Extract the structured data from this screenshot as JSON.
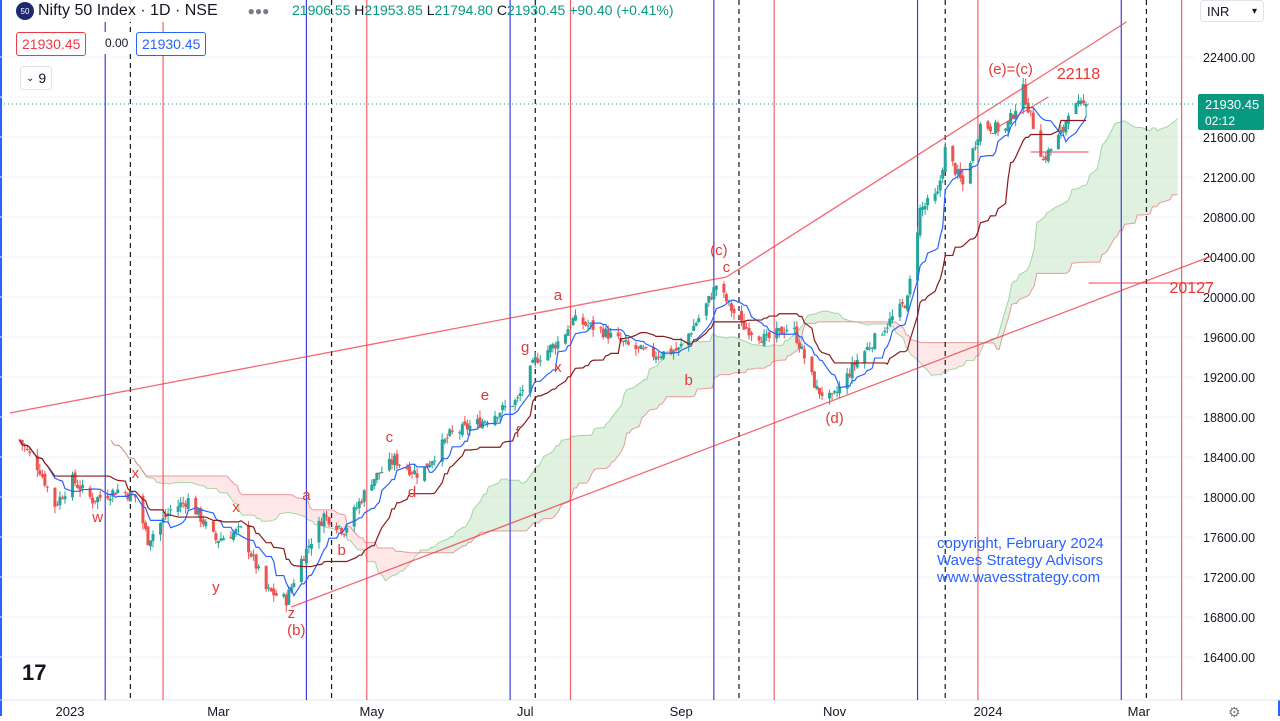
{
  "header": {
    "symbol_badge": "50",
    "title": "Nifty 50 Index · 1D · NSE",
    "open": "21906.55",
    "high_label": "H",
    "high": "21953.85",
    "low_label": "L",
    "low": "21794.80",
    "close_label": "C",
    "close": "21930.45",
    "change": "+90.40 (+0.41%)",
    "more_icon": "ellipsis-icon"
  },
  "indicator": {
    "value1": "21930.45",
    "value2": "0.00",
    "value3": "21930.45",
    "collapse_label": "9"
  },
  "currency": "INR",
  "last_price": {
    "value": "21930.45",
    "countdown": "02:12"
  },
  "copyright": [
    "copyright, February 2024",
    "Waves Strategy Advisors",
    "www.wavesstrategy.com"
  ],
  "colors": {
    "up": "#26a69a",
    "down": "#ef5350",
    "tenkan": "#2962ff",
    "kijun": "#8b1a1a",
    "cloud_green": "#a5d6a7",
    "cloud_red": "#f8bbbb",
    "trendline": "#f23645",
    "vline_blue": "#3f3fe0",
    "vline_red": "#f23645",
    "vline_dash": "#131722",
    "label": "#e53935",
    "price_tag": "#089981"
  },
  "chart_data": {
    "type": "candlestick",
    "title": "Nifty 50 Index · 1D · NSE",
    "ylim": [
      16200,
      22800
    ],
    "yticks": [
      16400,
      16800,
      17200,
      17600,
      18000,
      18400,
      18800,
      19200,
      19600,
      20000,
      20400,
      20800,
      21200,
      21600,
      22000,
      22400
    ],
    "ytick_labels": [
      "16400.00",
      "16800.00",
      "17200.00",
      "17600.00",
      "18000.00",
      "18400.00",
      "18800.00",
      "19200.00",
      "19600.00",
      "20000.00",
      "20400.00",
      "20800.00",
      "21200.00",
      "21600.00",
      "",
      "22400.00"
    ],
    "xlim": [
      "2022-12-08",
      "2024-03-30"
    ],
    "xticks": [
      {
        "date": "2023-01-01",
        "label": "2023"
      },
      {
        "date": "2023-03-01",
        "label": "Mar"
      },
      {
        "date": "2023-05-01",
        "label": "May"
      },
      {
        "date": "2023-07-01",
        "label": "Jul"
      },
      {
        "date": "2023-09-01",
        "label": "Sep"
      },
      {
        "date": "2023-11-01",
        "label": "Nov"
      },
      {
        "date": "2024-01-01",
        "label": "2024"
      },
      {
        "date": "2024-03-01",
        "label": "Mar"
      }
    ],
    "close_path": [
      [
        "2022-12-12",
        18570
      ],
      [
        "2022-12-20",
        18270
      ],
      [
        "2022-12-26",
        17920
      ],
      [
        "2023-01-02",
        18170
      ],
      [
        "2023-01-10",
        17970
      ],
      [
        "2023-01-20",
        18070
      ],
      [
        "2023-01-27",
        18000
      ],
      [
        "2023-02-01",
        17570
      ],
      [
        "2023-02-10",
        17870
      ],
      [
        "2023-02-17",
        17970
      ],
      [
        "2023-02-28",
        17570
      ],
      [
        "2023-03-10",
        17670
      ],
      [
        "2023-03-20",
        17070
      ],
      [
        "2023-03-28",
        16970
      ],
      [
        "2023-04-03",
        17370
      ],
      [
        "2023-04-12",
        17820
      ],
      [
        "2023-04-20",
        17670
      ],
      [
        "2023-05-01",
        18170
      ],
      [
        "2023-05-10",
        18370
      ],
      [
        "2023-05-20",
        18220
      ],
      [
        "2023-06-01",
        18620
      ],
      [
        "2023-06-15",
        18770
      ],
      [
        "2023-06-28",
        18970
      ],
      [
        "2023-07-05",
        19370
      ],
      [
        "2023-07-15",
        19570
      ],
      [
        "2023-07-20",
        19770
      ],
      [
        "2023-07-31",
        19670
      ],
      [
        "2023-08-10",
        19520
      ],
      [
        "2023-08-20",
        19420
      ],
      [
        "2023-08-31",
        19470
      ],
      [
        "2023-09-10",
        19870
      ],
      [
        "2023-09-15",
        20120
      ],
      [
        "2023-09-25",
        19720
      ],
      [
        "2023-10-05",
        19570
      ],
      [
        "2023-10-15",
        19720
      ],
      [
        "2023-10-25",
        19070
      ],
      [
        "2023-10-31",
        18970
      ],
      [
        "2023-11-10",
        19370
      ],
      [
        "2023-11-20",
        19670
      ],
      [
        "2023-11-30",
        19970
      ],
      [
        "2023-12-05",
        20870
      ],
      [
        "2023-12-12",
        21020
      ],
      [
        "2023-12-15",
        21470
      ],
      [
        "2023-12-22",
        21120
      ],
      [
        "2023-12-29",
        21720
      ],
      [
        "2024-01-08",
        21670
      ],
      [
        "2024-01-15",
        22070
      ],
      [
        "2024-01-23",
        21370
      ],
      [
        "2024-01-31",
        21670
      ],
      [
        "2024-02-02",
        21870
      ],
      [
        "2024-02-09",
        21930.45
      ]
    ],
    "trendlines": [
      {
        "from": [
          "2022-12-08",
          18840
        ],
        "to": [
          "2023-09-19",
          20200
        ]
      },
      {
        "from": [
          "2023-09-19",
          20200
        ],
        "to": [
          "2024-02-25",
          22750
        ]
      },
      {
        "from": [
          "2023-03-30",
          16900
        ],
        "to": [
          "2024-03-30",
          20410
        ]
      },
      {
        "from": [
          "2024-01-05",
          21700
        ],
        "to": [
          "2024-01-25",
          22000
        ]
      },
      {
        "from": [
          "2024-01-18",
          21450
        ],
        "to": [
          "2024-02-10",
          21450
        ]
      },
      {
        "from": [
          "2024-02-10",
          20140
        ],
        "to": [
          "2024-03-30",
          20140
        ]
      }
    ],
    "vlines_blue": [
      "2023-01-15",
      "2023-04-05",
      "2023-06-25",
      "2023-09-14",
      "2023-12-04",
      "2024-02-23"
    ],
    "vlines_red": [
      "2023-02-07",
      "2023-04-29",
      "2023-07-19",
      "2023-10-08",
      "2023-12-28",
      "2024-03-18"
    ],
    "vlines_dashed": [
      "2023-01-25",
      "2023-04-15",
      "2023-07-05",
      "2023-09-24",
      "2023-12-15",
      "2024-03-04"
    ],
    "wave_labels": [
      [
        "w",
        "2023-01-12",
        17750
      ],
      [
        "x",
        "2023-01-27",
        18190
      ],
      [
        "y",
        "2023-02-28",
        17050
      ],
      [
        "x",
        "2023-03-08",
        17850
      ],
      [
        "z",
        "2023-03-30",
        16790
      ],
      [
        "(b)",
        "2023-04-01",
        16620
      ],
      [
        "a",
        "2023-04-05",
        17970
      ],
      [
        "b",
        "2023-04-19",
        17420
      ],
      [
        "c",
        "2023-05-08",
        18550
      ],
      [
        "d",
        "2023-05-17",
        18000
      ],
      [
        "e",
        "2023-06-15",
        18970
      ],
      [
        "f",
        "2023-06-28",
        18600
      ],
      [
        "g",
        "2023-07-01",
        19450
      ],
      [
        "a",
        "2023-07-14",
        19970
      ],
      [
        "x",
        "2023-07-14",
        19250
      ],
      [
        "b",
        "2023-09-04",
        19120
      ],
      [
        "(c)",
        "2023-09-16",
        20420
      ],
      [
        "c",
        "2023-09-19",
        20250
      ],
      [
        "(d)",
        "2023-11-01",
        18740
      ],
      [
        "(e)=(c)",
        "2024-01-10",
        22230
      ],
      [
        "22118",
        "2024-02-06",
        22180
      ],
      [
        "20127",
        "2024-03-22",
        20040
      ]
    ]
  }
}
